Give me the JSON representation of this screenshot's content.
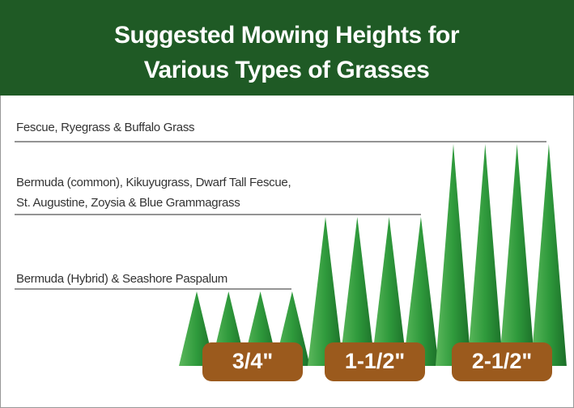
{
  "header": {
    "title_lines": [
      "Suggested Mowing Heights for",
      "Various Types of Grasses"
    ]
  },
  "groups": [
    {
      "label_lines": [
        "Bermuda (Hybrid) & Seashore Paspalum"
      ],
      "height": "3/4\""
    },
    {
      "label_lines": [
        "Bermuda (common), Kikuyugrass, Dwarf Tall Fescue,",
        "St. Augustine, Zoysia & Blue Grammagrass"
      ],
      "height": "1-1/2\""
    },
    {
      "label_lines": [
        "Fescue, Ryegrass & Buffalo Grass"
      ],
      "height": "2-1/2\""
    }
  ]
}
